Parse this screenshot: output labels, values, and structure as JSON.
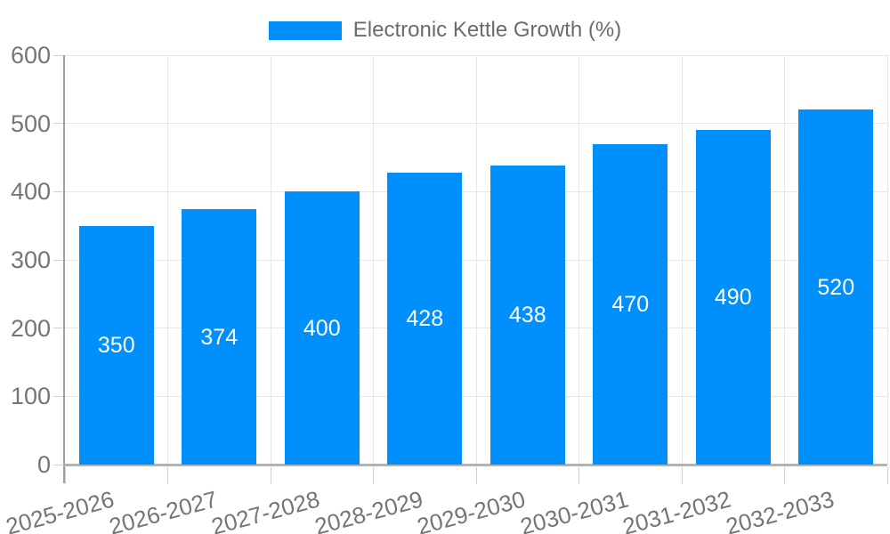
{
  "legend": {
    "label": "Electronic Kettle Growth (%)",
    "marker_color": "#008FFB"
  },
  "chart_data": {
    "type": "bar",
    "title": "Electronic Kettle Growth (%)",
    "categories": [
      "2025-2026",
      "2026-2027",
      "2027-2028",
      "2028-2029",
      "2029-2030",
      "2030-2031",
      "2031-2032",
      "2032-2033"
    ],
    "series": [
      {
        "name": "Electronic Kettle Growth (%)",
        "values": [
          350,
          374,
          400,
          428,
          438,
          470,
          490,
          520
        ]
      }
    ],
    "xlabel": "",
    "ylabel": "",
    "ylim": [
      0,
      600
    ],
    "yticks": [
      0,
      100,
      200,
      300,
      400,
      500,
      600
    ],
    "grid": true,
    "legend_position": "top",
    "bar_color": "#008FFB",
    "data_labels": {
      "show": true,
      "position": "middle",
      "color": "#ffffff"
    }
  },
  "colors": {
    "bar": "#008FFB",
    "gridline": "#e6e6e6",
    "axis_line": "#b3b3b3",
    "tick": "#d2d2d2",
    "tick_label": "#757575",
    "legend_text": "#6b6b6b",
    "data_label": "#ffffff",
    "background": "#ffffff"
  }
}
